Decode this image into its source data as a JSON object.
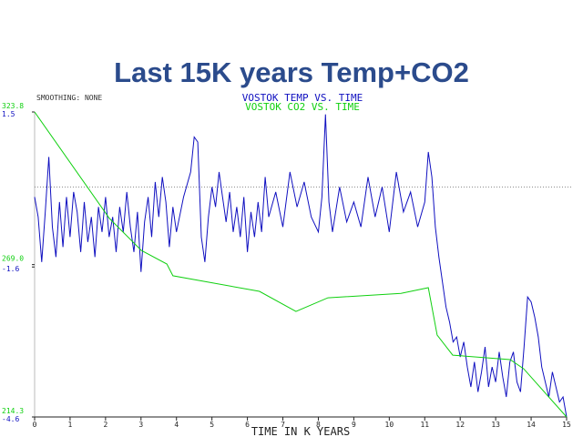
{
  "chart_data": {
    "type": "line",
    "title": "Last 15K years Temp+CO2",
    "subtitle": "SMOOTHING: NONE",
    "x_label": "TIME IN K YEARS",
    "xlim": [
      0,
      15
    ],
    "xticks": [
      0,
      1,
      2,
      3,
      4,
      5,
      6,
      7,
      8,
      9,
      10,
      11,
      12,
      13,
      14,
      15
    ],
    "ylim": [
      -4.6,
      1.5
    ],
    "yticks": [
      1.5,
      -1.6,
      -4.6
    ],
    "y2lim": [
      214.3,
      323.8
    ],
    "y2ticks": [
      323.8,
      {
        "value": 269,
        "label": "269.0"
      },
      214.3
    ],
    "reference_line": 0,
    "series": [
      {
        "name": "VOSTOK TEMP VS. TIME",
        "color": "#1010c0",
        "axis": "y",
        "x": [
          0,
          0.1,
          0.2,
          0.3,
          0.4,
          0.5,
          0.6,
          0.7,
          0.8,
          0.9,
          1.0,
          1.1,
          1.2,
          1.3,
          1.4,
          1.5,
          1.6,
          1.7,
          1.8,
          1.9,
          2.0,
          2.1,
          2.2,
          2.3,
          2.4,
          2.5,
          2.6,
          2.7,
          2.8,
          2.9,
          3.0,
          3.1,
          3.2,
          3.3,
          3.4,
          3.5,
          3.6,
          3.7,
          3.8,
          3.9,
          4.0,
          4.2,
          4.4,
          4.5,
          4.6,
          4.7,
          4.8,
          4.9,
          5.0,
          5.1,
          5.2,
          5.3,
          5.4,
          5.5,
          5.6,
          5.7,
          5.8,
          5.9,
          6.0,
          6.1,
          6.2,
          6.3,
          6.4,
          6.5,
          6.6,
          6.8,
          7.0,
          7.2,
          7.4,
          7.6,
          7.8,
          8.0,
          8.1,
          8.2,
          8.3,
          8.4,
          8.6,
          8.8,
          9.0,
          9.2,
          9.4,
          9.6,
          9.8,
          10.0,
          10.2,
          10.4,
          10.6,
          10.8,
          11.0,
          11.1,
          11.2,
          11.3,
          11.4,
          11.5,
          11.6,
          11.7,
          11.8,
          11.9,
          12.0,
          12.1,
          12.2,
          12.3,
          12.4,
          12.5,
          12.6,
          12.7,
          12.8,
          12.9,
          13.0,
          13.1,
          13.2,
          13.3,
          13.4,
          13.5,
          13.6,
          13.7,
          13.8,
          13.9,
          14.0,
          14.1,
          14.2,
          14.3,
          14.4,
          14.5,
          14.6,
          14.7,
          14.8,
          14.9,
          15.0
        ],
        "values": [
          -0.2,
          -0.6,
          -1.5,
          -0.5,
          0.6,
          -0.8,
          -1.4,
          -0.3,
          -1.2,
          -0.2,
          -1.0,
          -0.1,
          -0.5,
          -1.3,
          -0.3,
          -1.1,
          -0.6,
          -1.4,
          -0.4,
          -0.9,
          -0.2,
          -1.0,
          -0.6,
          -1.3,
          -0.4,
          -0.9,
          -0.1,
          -0.8,
          -1.3,
          -0.5,
          -1.7,
          -0.7,
          -0.2,
          -1.0,
          0.1,
          -0.6,
          0.2,
          -0.3,
          -1.2,
          -0.4,
          -0.9,
          -0.2,
          0.3,
          1.0,
          0.9,
          -1.0,
          -1.5,
          -0.6,
          0.0,
          -0.4,
          0.3,
          -0.2,
          -0.7,
          -0.1,
          -0.9,
          -0.4,
          -1.0,
          -0.2,
          -1.3,
          -0.5,
          -1.0,
          -0.3,
          -0.9,
          0.2,
          -0.6,
          -0.1,
          -0.8,
          0.3,
          -0.4,
          0.1,
          -0.6,
          -0.9,
          -0.2,
          1.45,
          -0.3,
          -0.9,
          0.0,
          -0.7,
          -0.3,
          -0.8,
          0.2,
          -0.6,
          0.0,
          -0.9,
          0.3,
          -0.5,
          -0.1,
          -0.8,
          -0.3,
          0.7,
          0.2,
          -0.8,
          -1.4,
          -1.9,
          -2.4,
          -2.7,
          -3.1,
          -3.0,
          -3.4,
          -3.1,
          -3.6,
          -4.0,
          -3.5,
          -4.1,
          -3.7,
          -3.2,
          -4.0,
          -3.6,
          -3.9,
          -3.3,
          -3.8,
          -4.2,
          -3.5,
          -3.3,
          -3.9,
          -4.1,
          -3.2,
          -2.2,
          -2.3,
          -2.6,
          -3.0,
          -3.6,
          -3.9,
          -4.2,
          -3.7,
          -4.0,
          -4.3,
          -4.2,
          -4.6
        ]
      },
      {
        "name": "VOSTOK CO2 VS. TIME",
        "color": "#10d010",
        "axis": "y2",
        "x": [
          0,
          2.11,
          3.01,
          3.73,
          3.9,
          6.34,
          7.37,
          8.27,
          10.33,
          11.1,
          11.35,
          11.79,
          13.41,
          13.79,
          15.0
        ],
        "values": [
          323.8,
          285.6,
          274.1,
          269.2,
          265.0,
          259.4,
          252.2,
          257.1,
          258.7,
          260.7,
          243.7,
          236.5,
          234.9,
          231.6,
          214.3
        ]
      }
    ]
  }
}
